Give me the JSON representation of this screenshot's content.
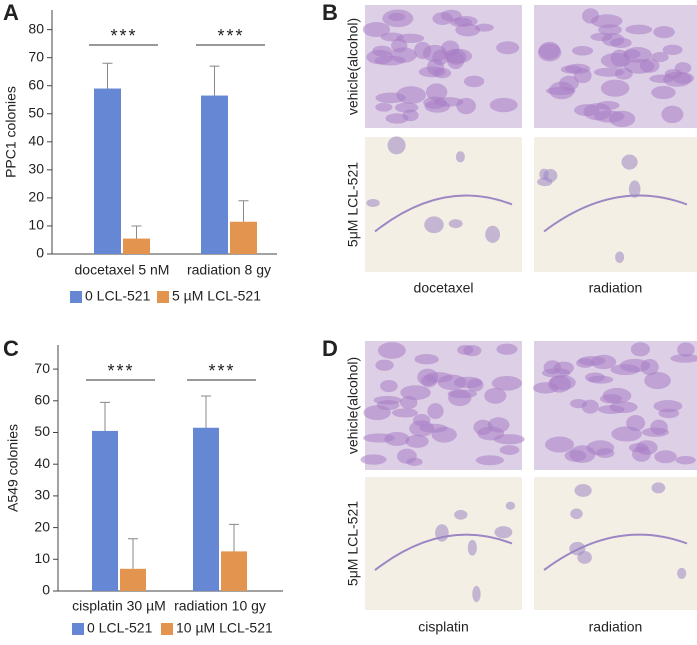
{
  "chart_data": [
    {
      "type": "bar",
      "panel": "A",
      "ylabel": "PPC1 colonies",
      "categories": [
        "docetaxel 5 nM",
        "radiation 8 gy"
      ],
      "series": [
        {
          "name": "0 LCL-521",
          "color": "#6688d4",
          "values": [
            59,
            56.5
          ],
          "errors": [
            9,
            10.5
          ]
        },
        {
          "name": "5 µM LCL-521",
          "color": "#e39550",
          "values": [
            5.5,
            11.5
          ],
          "errors": [
            4.5,
            7.5
          ]
        }
      ],
      "annotations": [
        "***",
        "***"
      ],
      "ylim": [
        0,
        87
      ],
      "yticks": [
        0,
        10,
        20,
        30,
        40,
        50,
        60,
        70,
        80
      ]
    },
    {
      "type": "bar",
      "panel": "C",
      "ylabel": "A549 colonies",
      "categories": [
        "cisplatin 30 µM",
        "radiation 10 gy"
      ],
      "series": [
        {
          "name": "0 LCL-521",
          "color": "#6688d4",
          "values": [
            50.5,
            51.5
          ],
          "errors": [
            9,
            10
          ]
        },
        {
          "name": "10 µM LCL-521",
          "color": "#e39550",
          "values": [
            7,
            12.5
          ],
          "errors": [
            9.5,
            8.5
          ]
        }
      ],
      "annotations": [
        "***",
        "***"
      ],
      "ylim": [
        0,
        77.6
      ],
      "yticks": [
        0,
        10,
        20,
        30,
        40,
        50,
        60,
        70
      ]
    }
  ],
  "image_panels": [
    {
      "panel": "B",
      "rows": [
        "vehicle(alcohol)",
        "5μM LCL-521"
      ],
      "columns": [
        "docetaxel",
        "radiation"
      ]
    },
    {
      "panel": "D",
      "rows": [
        "vehicle(alcohol)",
        "5μM LCL-521"
      ],
      "columns": [
        "cisplatin",
        "radiation"
      ]
    }
  ]
}
